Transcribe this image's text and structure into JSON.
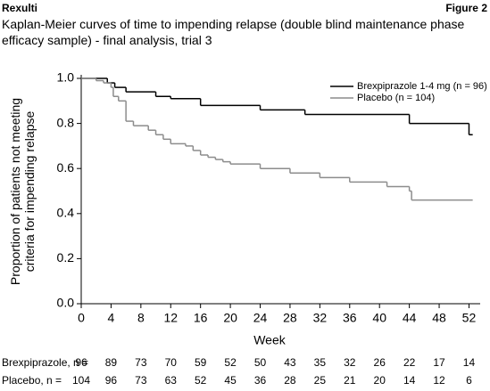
{
  "header": {
    "left": "Rexulti",
    "right": "Figure 2"
  },
  "chart_data": {
    "type": "step",
    "title": "Kaplan-Meier curves of time to impending relapse (double blind maintenance phase efficacy sample) - final analysis, trial 3",
    "xlabel": "Week",
    "ylabel": "Proportion of patients not meeting criteria for impending relapse",
    "xlim": [
      0,
      53.5
    ],
    "ylim": [
      0,
      1
    ],
    "xticks": [
      0,
      4,
      8,
      12,
      16,
      20,
      24,
      28,
      32,
      36,
      40,
      44,
      48,
      52
    ],
    "yticks": [
      {
        "value": 0,
        "label": "0.0"
      },
      {
        "value": 0.2,
        "label": "0.2"
      },
      {
        "value": 0.4,
        "label": "0.4"
      },
      {
        "value": 0.6,
        "label": "0.6"
      },
      {
        "value": 0.8,
        "label": "0.8"
      },
      {
        "value": 1,
        "label": "1.0"
      }
    ],
    "legend": "upper right",
    "series": [
      {
        "name": "Brexpiprazole 1-4 mg (n = 96)",
        "color": "#000000",
        "x": [
          0,
          3.5,
          4.5,
          6,
          10,
          12,
          16,
          24,
          30,
          44,
          52,
          52.5
        ],
        "values": [
          1,
          0.98,
          0.96,
          0.94,
          0.92,
          0.91,
          0.88,
          0.86,
          0.84,
          0.8,
          0.75,
          0.75
        ]
      },
      {
        "name": "Placebo (n = 104)",
        "color": "#8c8c8c",
        "x": [
          0,
          2,
          3,
          4,
          4.3,
          5,
          6,
          7,
          9,
          10,
          11,
          12,
          14,
          15,
          16,
          17,
          18,
          19,
          20,
          24,
          28,
          32,
          36,
          41,
          44,
          44.3,
          52.5
        ],
        "values": [
          1,
          0.99,
          0.98,
          0.96,
          0.92,
          0.9,
          0.81,
          0.79,
          0.77,
          0.75,
          0.73,
          0.71,
          0.7,
          0.68,
          0.66,
          0.65,
          0.64,
          0.63,
          0.62,
          0.6,
          0.58,
          0.56,
          0.54,
          0.52,
          0.5,
          0.46,
          0.46
        ]
      }
    ],
    "risk_table": [
      {
        "label": "Brexpiprazole, n =",
        "values": [
          96,
          89,
          73,
          70,
          59,
          52,
          50,
          43,
          35,
          32,
          26,
          22,
          17,
          14
        ]
      },
      {
        "label": "Placebo, n =",
        "values": [
          104,
          96,
          73,
          63,
          52,
          45,
          36,
          28,
          25,
          21,
          20,
          14,
          12,
          6
        ]
      }
    ]
  }
}
